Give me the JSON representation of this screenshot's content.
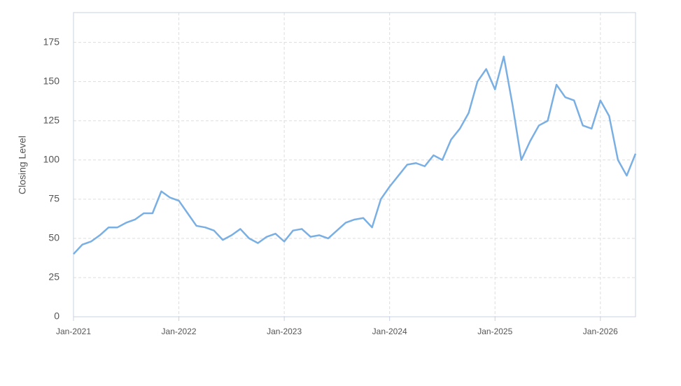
{
  "chart_data": {
    "type": "line",
    "y_label": "Closing Level",
    "x": [
      "2021-01",
      "2021-02",
      "2021-03",
      "2021-04",
      "2021-05",
      "2021-06",
      "2021-07",
      "2021-08",
      "2021-09",
      "2021-10",
      "2021-11",
      "2021-12",
      "2022-01",
      "2022-02",
      "2022-03",
      "2022-04",
      "2022-05",
      "2022-06",
      "2022-07",
      "2022-08",
      "2022-09",
      "2022-10",
      "2022-11",
      "2022-12",
      "2023-01",
      "2023-02",
      "2023-03",
      "2023-04",
      "2023-05",
      "2023-06",
      "2023-07",
      "2023-08",
      "2023-09",
      "2023-10",
      "2023-11",
      "2023-12",
      "2024-01",
      "2024-02",
      "2024-03",
      "2024-04",
      "2024-05",
      "2024-06",
      "2024-07",
      "2024-08",
      "2024-09",
      "2024-10",
      "2024-11",
      "2024-12",
      "2025-01",
      "2025-02",
      "2025-03",
      "2025-04",
      "2025-05",
      "2025-06",
      "2025-07",
      "2025-08",
      "2025-09",
      "2025-10",
      "2025-11",
      "2025-12",
      "2026-01",
      "2026-02",
      "2026-03",
      "2026-04",
      "2026-05"
    ],
    "series": [
      {
        "name": "Closing Level",
        "color": "#7aafe3",
        "values": [
          40,
          46,
          48,
          52,
          57,
          57,
          60,
          62,
          66,
          66,
          80,
          76,
          74,
          66,
          58,
          57,
          55,
          49,
          52,
          56,
          50,
          47,
          51,
          53,
          48,
          55,
          56,
          51,
          52,
          50,
          55,
          60,
          62,
          63,
          57,
          75,
          83,
          90,
          97,
          98,
          96,
          103,
          100,
          113,
          120,
          130,
          150,
          158,
          145,
          166,
          135,
          100,
          112,
          122,
          125,
          148,
          140,
          138,
          122,
          120,
          138,
          128,
          100,
          90,
          104
        ]
      }
    ],
    "xlim": [
      "2021-01",
      "2026-05"
    ],
    "xticks": [
      {
        "value": "2021-01",
        "label": "Jan-2021"
      },
      {
        "value": "2022-01",
        "label": "Jan-2022"
      },
      {
        "value": "2023-01",
        "label": "Jan-2023"
      },
      {
        "value": "2024-01",
        "label": "Jan-2024"
      },
      {
        "value": "2025-01",
        "label": "Jan-2025"
      },
      {
        "value": "2026-01",
        "label": "Jan-2026"
      }
    ],
    "ylim": [
      0,
      194
    ],
    "yticks": [
      0,
      25,
      50,
      75,
      100,
      125,
      150,
      175
    ],
    "grid": true
  }
}
